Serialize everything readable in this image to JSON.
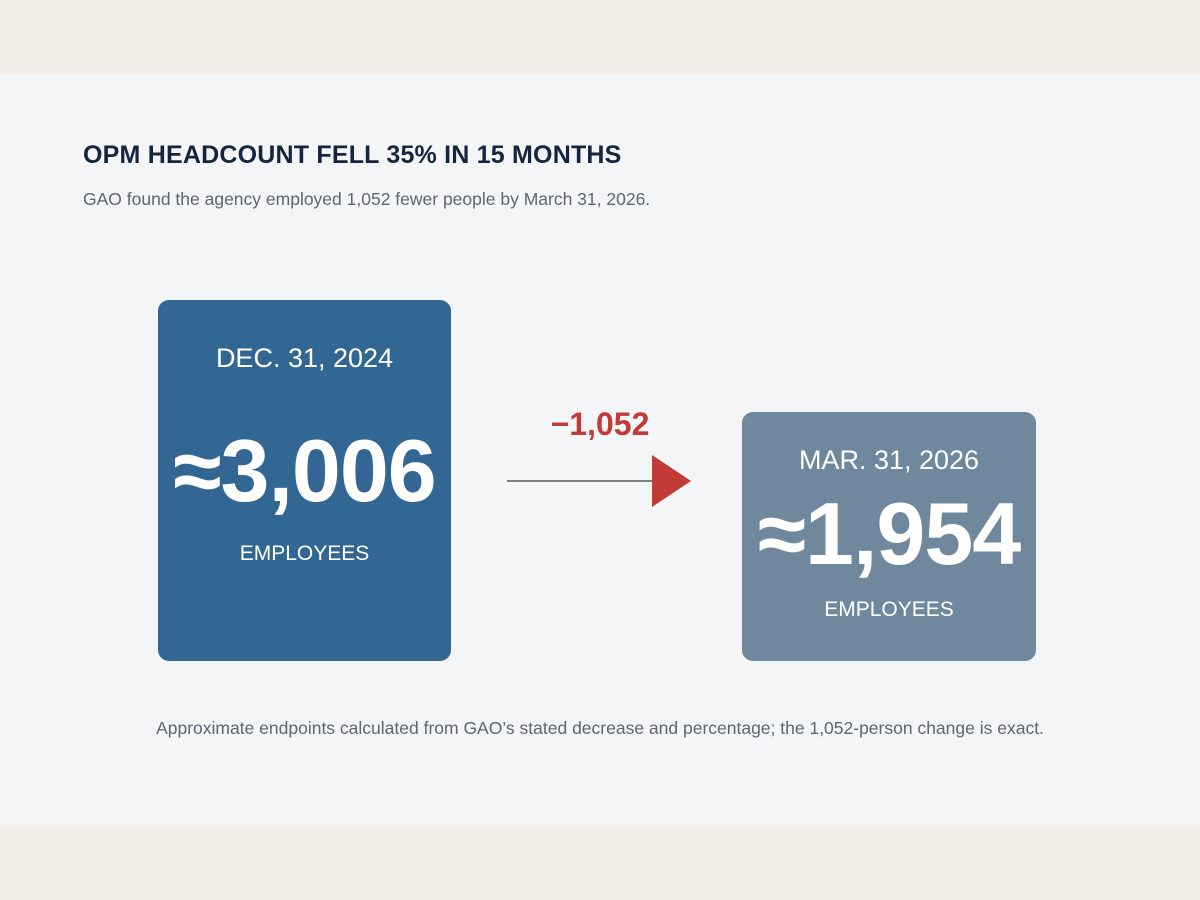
{
  "title": "OPM HEADCOUNT FELL 35% IN 15 MONTHS",
  "subtitle": "GAO found the agency employed 1,052 fewer people by March 31, 2026.",
  "footnote": "Approximate endpoints calculated from GAO’s stated decrease and percentage; the 1,052-person change is exact.",
  "colors": {
    "before_card": "#326793",
    "after_card": "#6f889d",
    "change": "#c23b37",
    "title": "#15253f",
    "background": "#f3f5f7",
    "band": "#f3efe8"
  },
  "chart_data": {
    "type": "table",
    "before": {
      "date": "DEC. 31, 2024",
      "value": 3006,
      "display": "≈3,006",
      "unit": "EMPLOYEES"
    },
    "after": {
      "date": "MAR. 31, 2026",
      "value": 1954,
      "display": "≈1,954",
      "unit": "EMPLOYEES"
    },
    "change": {
      "value": -1052,
      "display": "−1,052"
    }
  }
}
